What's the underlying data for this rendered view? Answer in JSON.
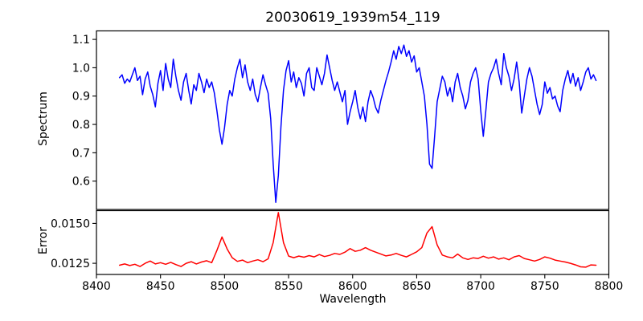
{
  "chart_data": {
    "type": "line",
    "title": "20030619_1939m54_119",
    "xlabel": "Wavelength",
    "grid": false,
    "legend": "none",
    "x_range": [
      8400,
      8800
    ],
    "xticks": [
      8400,
      8450,
      8500,
      8550,
      8600,
      8650,
      8700,
      8750,
      8800
    ],
    "xtick_labels": [
      "8400",
      "8450",
      "8500",
      "8550",
      "8600",
      "8650",
      "8700",
      "8750",
      "8800"
    ],
    "subplots": [
      {
        "name": "spectrum-panel",
        "ylabel": "Spectrum",
        "ylim": [
          0.5,
          1.13
        ],
        "yticks": [
          0.6,
          0.7,
          0.8,
          0.9,
          1.0,
          1.1
        ],
        "ytick_labels": [
          "0.6",
          "0.7",
          "0.8",
          "0.9",
          "1.0",
          "1.1"
        ],
        "show_xtick_labels": false,
        "series": [
          {
            "name": "spectrum",
            "color": "#0000ff",
            "x_start": 8418,
            "x_step": 2,
            "values": [
              0.965,
              0.975,
              0.945,
              0.96,
              0.95,
              0.975,
              1.0,
              0.955,
              0.97,
              0.905,
              0.96,
              0.985,
              0.935,
              0.905,
              0.862,
              0.945,
              0.99,
              0.92,
              1.015,
              0.96,
              0.93,
              1.03,
              0.97,
              0.92,
              0.885,
              0.95,
              0.98,
              0.92,
              0.872,
              0.94,
              0.92,
              0.98,
              0.95,
              0.912,
              0.96,
              0.93,
              0.95,
              0.912,
              0.85,
              0.78,
              0.73,
              0.79,
              0.87,
              0.92,
              0.9,
              0.96,
              1.0,
              1.03,
              0.965,
              1.01,
              0.95,
              0.92,
              0.96,
              0.905,
              0.88,
              0.93,
              0.975,
              0.94,
              0.91,
              0.82,
              0.66,
              0.525,
              0.62,
              0.79,
              0.92,
              0.99,
              1.025,
              0.95,
              0.985,
              0.93,
              0.965,
              0.945,
              0.9,
              0.98,
              1.0,
              0.93,
              0.92,
              1.0,
              0.97,
              0.94,
              0.98,
              1.045,
              1.0,
              0.955,
              0.92,
              0.95,
              0.915,
              0.88,
              0.92,
              0.8,
              0.845,
              0.88,
              0.92,
              0.86,
              0.82,
              0.862,
              0.81,
              0.88,
              0.92,
              0.895,
              0.86,
              0.84,
              0.885,
              0.92,
              0.955,
              0.985,
              1.02,
              1.06,
              1.03,
              1.075,
              1.05,
              1.08,
              1.04,
              1.06,
              1.02,
              1.042,
              0.985,
              1.0,
              0.95,
              0.9,
              0.8,
              0.66,
              0.645,
              0.76,
              0.88,
              0.925,
              0.97,
              0.95,
              0.9,
              0.93,
              0.88,
              0.95,
              0.98,
              0.93,
              0.9,
              0.855,
              0.885,
              0.95,
              0.98,
              1.0,
              0.96,
              0.85,
              0.758,
              0.85,
              0.95,
              0.98,
              1.0,
              1.03,
              0.98,
              0.94,
              1.05,
              1.0,
              0.97,
              0.92,
              0.96,
              1.02,
              0.95,
              0.84,
              0.9,
              0.96,
              1.0,
              0.97,
              0.92,
              0.87,
              0.835,
              0.87,
              0.95,
              0.91,
              0.93,
              0.89,
              0.9,
              0.865,
              0.845,
              0.92,
              0.96,
              0.99,
              0.945,
              0.98,
              0.935,
              0.965,
              0.92,
              0.95,
              0.985,
              1.0,
              0.96,
              0.975,
              0.955
            ]
          }
        ]
      },
      {
        "name": "error-panel",
        "ylabel": "Error",
        "ylim": [
          0.0118,
          0.0158
        ],
        "yticks": [
          0.0125,
          0.015
        ],
        "ytick_labels": [
          "0.0125",
          "0.0150"
        ],
        "show_xtick_labels": true,
        "series": [
          {
            "name": "error",
            "color": "#ff0000",
            "x_start": 8418,
            "x_step": 4,
            "values": [
              0.01238,
              0.01246,
              0.01236,
              0.01244,
              0.0123,
              0.0125,
              0.01264,
              0.01246,
              0.01254,
              0.01244,
              0.01256,
              0.01242,
              0.0123,
              0.0125,
              0.0126,
              0.01246,
              0.01258,
              0.01266,
              0.01254,
              0.0133,
              0.01415,
              0.0134,
              0.01285,
              0.01262,
              0.0127,
              0.01254,
              0.01264,
              0.01272,
              0.0126,
              0.01278,
              0.0138,
              0.01568,
              0.0138,
              0.01295,
              0.01285,
              0.01295,
              0.01288,
              0.01298,
              0.0129,
              0.01305,
              0.01292,
              0.013,
              0.01312,
              0.01306,
              0.0132,
              0.01342,
              0.01325,
              0.01332,
              0.01348,
              0.01332,
              0.0132,
              0.01308,
              0.01296,
              0.01302,
              0.01312,
              0.013,
              0.0129,
              0.01306,
              0.01322,
              0.01348,
              0.0144,
              0.0148,
              0.01365,
              0.01302,
              0.0129,
              0.01284,
              0.01308,
              0.01284,
              0.01274,
              0.01284,
              0.0128,
              0.01294,
              0.01282,
              0.0129,
              0.01276,
              0.01284,
              0.01272,
              0.0129,
              0.01298,
              0.0128,
              0.01272,
              0.01264,
              0.01274,
              0.0129,
              0.01282,
              0.0127,
              0.01264,
              0.01258,
              0.0125,
              0.0124,
              0.01228,
              0.01226,
              0.0124,
              0.01238
            ]
          }
        ]
      }
    ]
  }
}
